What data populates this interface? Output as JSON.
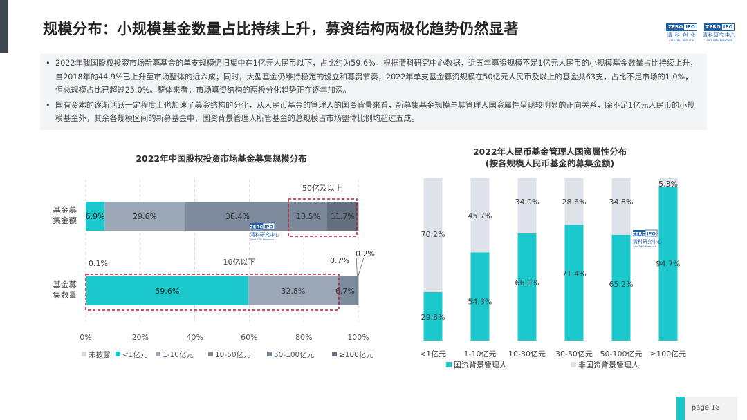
{
  "header": {
    "title": "规模分布：小规模基金数量占比持续上升，募资结构两极化趋势仍然显著",
    "logo1": {
      "a": "ZERO",
      "b": "IPO",
      "cn": "清 科 创 业",
      "en": "Zero2IPO Ventures"
    },
    "logo2": {
      "a": "ZERO",
      "b": "IPO",
      "cn": "清科研究中心",
      "en": "Zero2IPO Research"
    }
  },
  "bullets": [
    "2022年我国股权投资市场新募基金的单支规模仍旧集中在1亿元人民币以下，占比约为59.6%。根据清科研究中心数据，近五年募资规模不足1亿元人民币的小规模基金数量占比持续上升，自2018年的44.9%已上升至市场整体的近六成；同时，大型基金仍维持稳定的设立和募资节奏，2022年单支基金募资规模在50亿元人民币及以上的基金共63支，占比不足市场的1.0%，但总规模占比已超过25.0%。整体来看，市场募资结构的两极分化趋势正在逐年加深。",
    "国有资本的逐渐活跃一定程度上也加速了募资结构的分化，从人民币基金的管理人的国资背景来看，新募集基金规模与其管理人国资属性呈现较明显的正向关系，除不足1亿元人民币的小规模基金外，其余各规模区间的新募基金中，国资背景管理人所管基金的总规模占市场整体比例均超过五成。"
  ],
  "watermark": {
    "a": "ZERO",
    "b": "IPO",
    "cn": "清科研究中心",
    "en": "Zero2IPO Research"
  },
  "chart_data": [
    {
      "type": "bar",
      "orientation": "horizontal",
      "stacked": true,
      "title": "2022年中国股权投资市场基金募集规模分布",
      "categories": [
        "基金募集金额",
        "基金募集数量"
      ],
      "category_labels": [
        [
          "基金募",
          "集金额"
        ],
        [
          "基金募",
          "集数量"
        ]
      ],
      "xlim": [
        0,
        100
      ],
      "xticks": [
        "0%",
        "20%",
        "40%",
        "60%",
        "80%",
        "100%"
      ],
      "series": [
        {
          "name": "未披露",
          "color": "#d7dbe2",
          "values": [
            0.0,
            0.1
          ]
        },
        {
          "name": "<1亿元",
          "color": "#1bc8cc",
          "values": [
            6.9,
            59.6
          ]
        },
        {
          "name": "1-10亿元",
          "color": "#9ba7b6",
          "values": [
            29.6,
            32.8
          ]
        },
        {
          "name": "10-50亿元",
          "color": "#7e8b9d",
          "values": [
            38.4,
            6.7
          ]
        },
        {
          "name": "50-100亿元",
          "color": "#7a8799",
          "values": [
            13.5,
            0.7
          ]
        },
        {
          "name": "≥100亿元",
          "color": "#646f80",
          "values": [
            11.7,
            0.2
          ]
        }
      ],
      "bar_labels": [
        [
          "",
          "6.9%",
          "29.6%",
          "38.4%",
          "13.5%",
          "11.7%"
        ],
        [
          "0.1%",
          "59.6%",
          "32.8%",
          "6.7%",
          "0.7%",
          "0.2%"
        ]
      ],
      "annotations": [
        "50亿及以上",
        "10亿以下"
      ],
      "legend_position": "bottom"
    },
    {
      "type": "bar",
      "stacked": true,
      "title": "2022年人民币基金管理人国资属性分布",
      "subtitle": "(按各规模人民币基金的募集金额)",
      "categories": [
        "<1亿元",
        "1-10亿元",
        "10-30亿元",
        "30-50亿元",
        "50-100亿元",
        "≥100亿元"
      ],
      "ylim": [
        0,
        100
      ],
      "series": [
        {
          "name": "国资背景管理人",
          "color": "#1bc8cc",
          "values": [
            29.8,
            54.3,
            66.0,
            71.4,
            65.2,
            94.7
          ]
        },
        {
          "name": "非国资背景管理人",
          "color": "#dfe2e8",
          "values": [
            70.2,
            45.7,
            34.0,
            28.6,
            34.8,
            5.3
          ]
        }
      ],
      "legend_position": "bottom"
    }
  ],
  "page": {
    "label": "page  18"
  }
}
